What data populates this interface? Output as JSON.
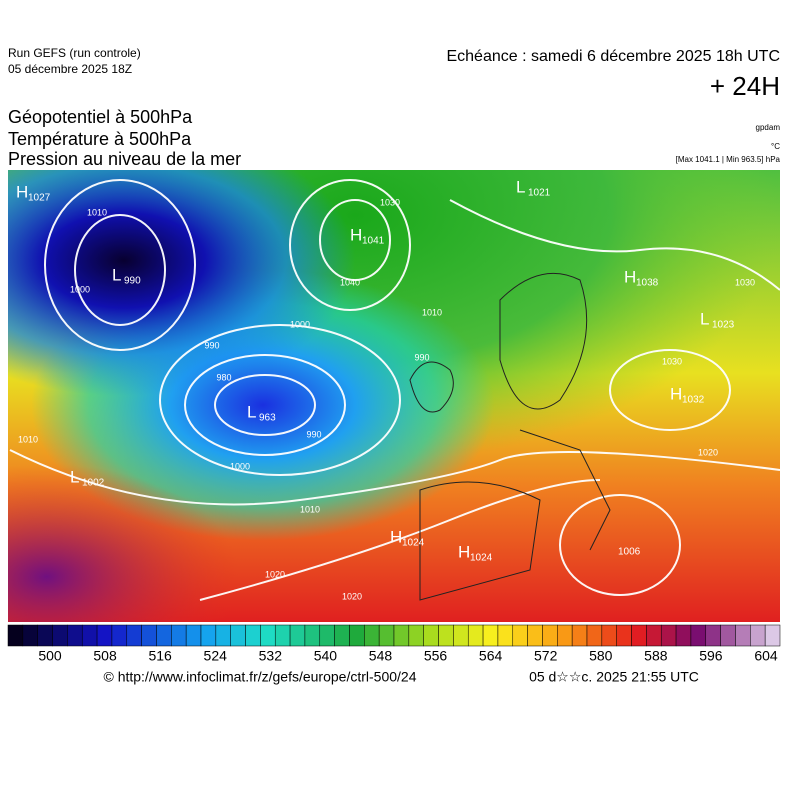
{
  "header": {
    "run": "Run GEFS (run controle)",
    "run_date": "05 décembre 2025 18Z",
    "echeance": "Echéance : samedi 6 décembre 2025 18h UTC",
    "lead": "+ 24H"
  },
  "titles": [
    "Géopotentiel à 500hPa",
    "Température à 500hPa",
    "Pression au niveau de la mer"
  ],
  "units": [
    "gpdam",
    "°C",
    "[Max 1041.1 | Min 963.5] hPa"
  ],
  "pressure_centers": [
    {
      "letter": "H",
      "value": "1027"
    },
    {
      "letter": "L",
      "value": "990"
    },
    {
      "letter": "H",
      "value": "1041"
    },
    {
      "letter": "L",
      "value": "1021"
    },
    {
      "letter": "H",
      "value": "1038"
    },
    {
      "letter": "L",
      "value": "1023"
    },
    {
      "letter": "L",
      "value": "963"
    },
    {
      "letter": "L",
      "value": "1002"
    },
    {
      "letter": "H",
      "value": "1024"
    },
    {
      "letter": "H",
      "value": "1024"
    },
    {
      "letter": "H",
      "value": "1032"
    },
    {
      "value": "1006"
    }
  ],
  "isobar_labels": [
    "1010",
    "1000",
    "1030",
    "1040",
    "1000",
    "1010",
    "990",
    "990",
    "980",
    "990",
    "1000",
    "1010",
    "1020",
    "1020",
    "1030",
    "1020",
    "1030",
    "1010"
  ],
  "colorbar_ticks": [
    500,
    508,
    516,
    524,
    532,
    540,
    548,
    556,
    564,
    572,
    580,
    588,
    596,
    604
  ],
  "footer": {
    "url": "© http://www.infoclimat.fr/z/gefs/europe/ctrl-500/24",
    "timestamp": "05 d☆☆c. 2025 21:55 UTC"
  }
}
